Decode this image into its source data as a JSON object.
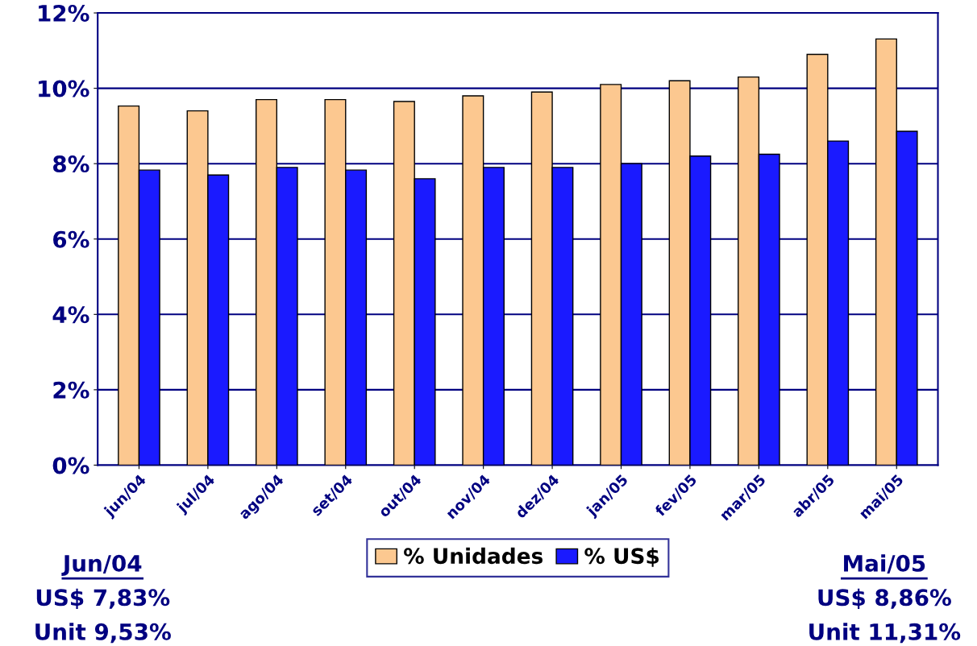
{
  "chart_data": {
    "type": "bar",
    "categories": [
      "jun/04",
      "jul/04",
      "ago/04",
      "set/04",
      "out/04",
      "nov/04",
      "dez/04",
      "jan/05",
      "fev/05",
      "mar/05",
      "abr/05",
      "mai/05"
    ],
    "series": [
      {
        "name": "% Unidades",
        "color": "#fcc890",
        "values": [
          9.53,
          9.4,
          9.7,
          9.7,
          9.65,
          9.8,
          9.9,
          10.1,
          10.2,
          10.3,
          10.9,
          11.31
        ]
      },
      {
        "name": "% US$",
        "color": "#1a1aff",
        "values": [
          7.83,
          7.7,
          7.9,
          7.83,
          7.6,
          7.9,
          7.9,
          8.0,
          8.2,
          8.25,
          8.6,
          8.86
        ]
      }
    ],
    "ylim": [
      0,
      12
    ],
    "yticks": [
      {
        "value": 0,
        "label": "0%"
      },
      {
        "value": 2,
        "label": "2%"
      },
      {
        "value": 4,
        "label": "4%"
      },
      {
        "value": 6,
        "label": "6%"
      },
      {
        "value": 8,
        "label": "8%"
      },
      {
        "value": 10,
        "label": "10%"
      },
      {
        "value": 12,
        "label": "12%"
      }
    ],
    "grid": "y",
    "legend": "bottom",
    "annotations": [
      "Jun/04",
      "US$ 7,83%",
      "Unit 9,53%",
      "Mai/05",
      "US$ 8,86%",
      "Unit 11,31%"
    ]
  }
}
